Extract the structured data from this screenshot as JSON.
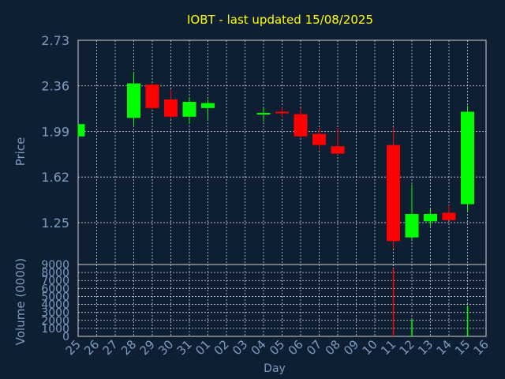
{
  "colors": {
    "background": "#0f1f33",
    "title": "#ffff00",
    "axis_text": "#7d9cc0",
    "grid": "#d0d0d0",
    "up": "#00ff00",
    "down": "#ff0000",
    "flat": "#00ff00"
  },
  "chart_data": {
    "type": "candlestick",
    "title": "IOBT - last updated 15/08/2025",
    "xlabel": "Day",
    "ylabel": "Price",
    "volume_label": "Volume (0000)",
    "x_ticks": [
      "25",
      "26",
      "27",
      "28",
      "29",
      "30",
      "31",
      "01",
      "02",
      "03",
      "04",
      "05",
      "06",
      "07",
      "08",
      "09",
      "10",
      "11",
      "12",
      "13",
      "14",
      "15",
      "16"
    ],
    "price_ticks": [
      "2.73",
      "2.36",
      "1.99",
      "1.62",
      "1.25"
    ],
    "price_range": [
      0.91,
      2.73
    ],
    "volume_ticks": [
      "9000",
      "8000",
      "7000",
      "6000",
      "5000",
      "4000",
      "3000",
      "2000",
      "1000",
      "0"
    ],
    "volume_range": [
      0,
      9000
    ],
    "candles": [
      {
        "day": "25",
        "open": 1.95,
        "high": 2.05,
        "low": 1.95,
        "close": 2.05
      },
      {
        "day": "28",
        "open": 2.1,
        "high": 2.47,
        "low": 2.04,
        "close": 2.38
      },
      {
        "day": "29",
        "open": 2.37,
        "high": 2.38,
        "low": 2.17,
        "close": 2.18
      },
      {
        "day": "30",
        "open": 2.25,
        "high": 2.33,
        "low": 2.09,
        "close": 2.11
      },
      {
        "day": "31",
        "open": 2.11,
        "high": 2.27,
        "low": 2.05,
        "close": 2.23
      },
      {
        "day": "01",
        "open": 2.18,
        "high": 2.25,
        "low": 2.09,
        "close": 2.22
      },
      {
        "day": "04",
        "open": 2.13,
        "high": 2.18,
        "low": 2.07,
        "close": 2.14
      },
      {
        "day": "05",
        "open": 2.15,
        "high": 2.19,
        "low": 2.1,
        "close": 2.14
      },
      {
        "day": "06",
        "open": 2.13,
        "high": 2.18,
        "low": 1.94,
        "close": 1.95
      },
      {
        "day": "07",
        "open": 1.97,
        "high": 2.02,
        "low": 1.84,
        "close": 1.88
      },
      {
        "day": "08",
        "open": 1.87,
        "high": 2.02,
        "low": 1.8,
        "close": 1.81
      },
      {
        "day": "11",
        "open": 1.88,
        "high": 2.02,
        "low": 1.04,
        "close": 1.1
      },
      {
        "day": "12",
        "open": 1.13,
        "high": 1.56,
        "low": 1.1,
        "close": 1.32
      },
      {
        "day": "13",
        "open": 1.26,
        "high": 1.36,
        "low": 1.22,
        "close": 1.32
      },
      {
        "day": "14",
        "open": 1.33,
        "high": 1.39,
        "low": 1.27,
        "close": 1.27
      },
      {
        "day": "15",
        "open": 1.4,
        "high": 2.2,
        "low": 1.34,
        "close": 2.15
      }
    ],
    "volume": [
      {
        "day": "11",
        "value": 8500,
        "direction": "down"
      },
      {
        "day": "12",
        "value": 2100,
        "direction": "up"
      },
      {
        "day": "15",
        "value": 3800,
        "direction": "up"
      }
    ]
  }
}
